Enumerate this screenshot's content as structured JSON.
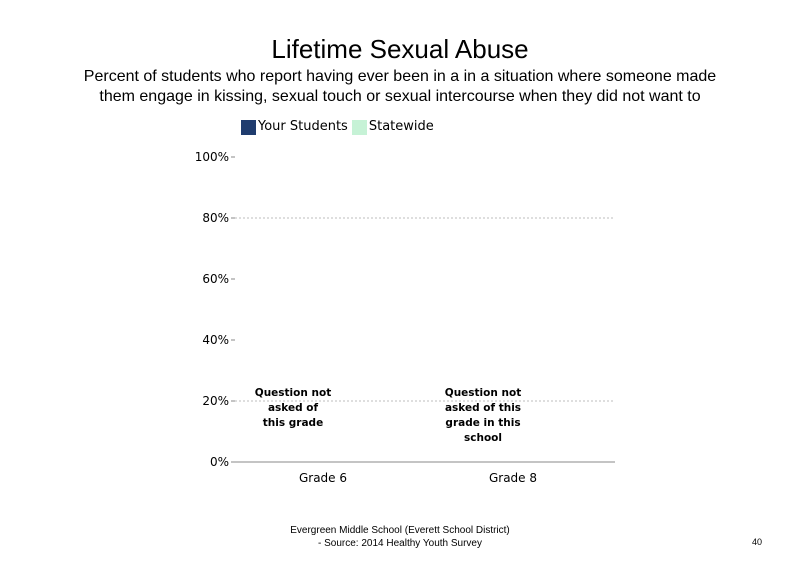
{
  "title": "Lifetime Sexual Abuse",
  "subtitle": "Percent of students who report having ever been in a in a situation where someone made them engage in kissing, sexual touch or sexual intercourse when they did not want to",
  "footer": {
    "line1": "Evergreen Middle School (Everett School District)",
    "line2": "- Source: 2014 Healthy Youth Survey"
  },
  "page_number": "40",
  "chart_data": {
    "type": "bar",
    "title": "Lifetime Sexual Abuse",
    "categories": [
      "Grade 6",
      "Grade 8"
    ],
    "series": [
      {
        "name": "Your Students",
        "color": "#1f3c6e",
        "values": [
          null,
          null
        ]
      },
      {
        "name": "Statewide",
        "color": "#c6f2d6",
        "values": [
          null,
          null
        ]
      }
    ],
    "ylim": [
      0,
      100
    ],
    "yticks": [
      "0%",
      "20%",
      "40%",
      "60%",
      "80%",
      "100%"
    ],
    "ytick_values": [
      0,
      20,
      40,
      60,
      80,
      100
    ],
    "grid": true,
    "legend_position": "top",
    "annotations": [
      {
        "category": "Grade 6",
        "lines": [
          "Question not",
          "asked of",
          "this grade"
        ]
      },
      {
        "category": "Grade 8",
        "lines": [
          "Question not",
          "asked of this",
          "grade in this",
          "school"
        ]
      }
    ]
  }
}
